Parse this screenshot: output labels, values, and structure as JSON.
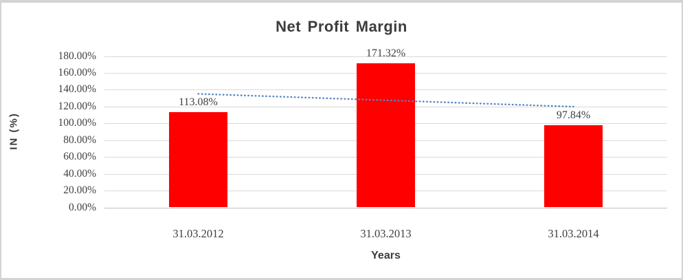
{
  "window": {
    "background": "#ffffff",
    "frame_border_color": "#d3d3d3"
  },
  "chart_data": {
    "type": "bar",
    "title": "Net Profit Margin",
    "xlabel": "Years",
    "ylabel": "IN (%)",
    "categories": [
      "31.03.2012",
      "31.03.2013",
      "31.03.2014"
    ],
    "series": [
      {
        "name": "Net Profit Margin",
        "values": [
          113.08,
          171.32,
          97.84
        ]
      }
    ],
    "data_labels": [
      "113.08%",
      "171.32%",
      "97.84%"
    ],
    "ylim": [
      0,
      180
    ],
    "ytick_step": 20,
    "ytick_labels": [
      "0.00%",
      "20.00%",
      "40.00%",
      "60.00%",
      "80.00%",
      "100.00%",
      "120.00%",
      "140.00%",
      "160.00%",
      "180.00%"
    ],
    "grid": true,
    "legend": "none",
    "bar_color": "#FE0000",
    "gridline_color": "#d9d9d9",
    "axis_line_color": "#c0c0c0",
    "text_color": "#3f3f3f",
    "trendline": {
      "type": "linear",
      "style": "dotted",
      "color": "#5586C1",
      "start_value": 135.03,
      "end_value": 119.79
    }
  }
}
